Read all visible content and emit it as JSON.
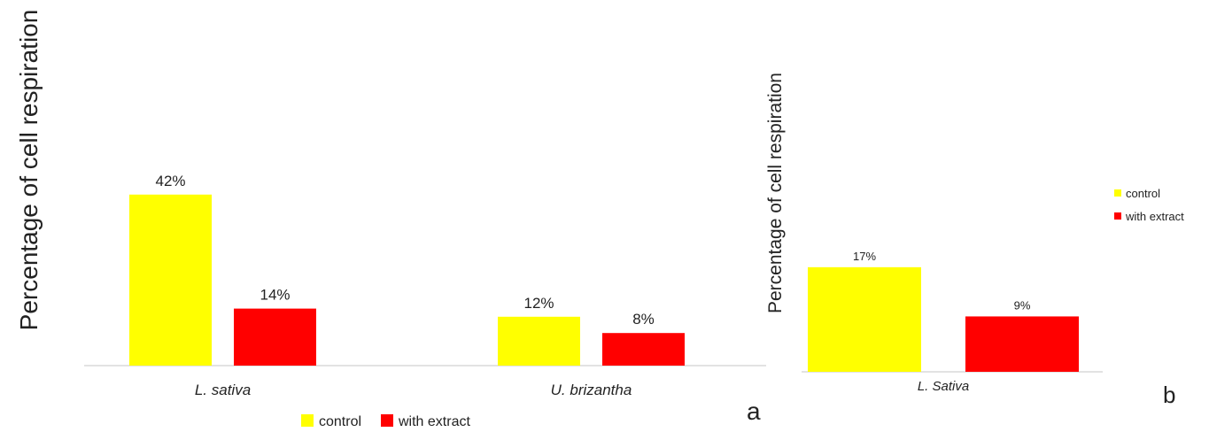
{
  "colors": {
    "control": "#ffff00",
    "with_extract": "#ff0000",
    "axis_line": "#d9d9d9",
    "text": "#222222"
  },
  "chart_data": [
    {
      "type": "bar",
      "panel_label": "a",
      "ylabel": "Percentage of cell respiration",
      "categories": [
        "L. sativa",
        "U. brizantha"
      ],
      "series": [
        {
          "name": "control",
          "values": [
            42,
            12
          ]
        },
        {
          "name": "with extract",
          "values": [
            14,
            8
          ]
        }
      ],
      "data_labels": [
        [
          "42%",
          "12%"
        ],
        [
          "14%",
          "8%"
        ]
      ],
      "ylim": [
        0,
        60
      ],
      "grid": false,
      "legend": "bottom"
    },
    {
      "type": "bar",
      "panel_label": "b",
      "ylabel": "Percentage of cell respiration",
      "categories": [
        "L. Sativa"
      ],
      "series": [
        {
          "name": "control",
          "values": [
            17
          ]
        },
        {
          "name": "with extract",
          "values": [
            9
          ]
        }
      ],
      "data_labels": [
        [
          "17%"
        ],
        [
          "9%"
        ]
      ],
      "ylim": [
        0,
        40
      ],
      "grid": false,
      "legend": "right"
    }
  ]
}
